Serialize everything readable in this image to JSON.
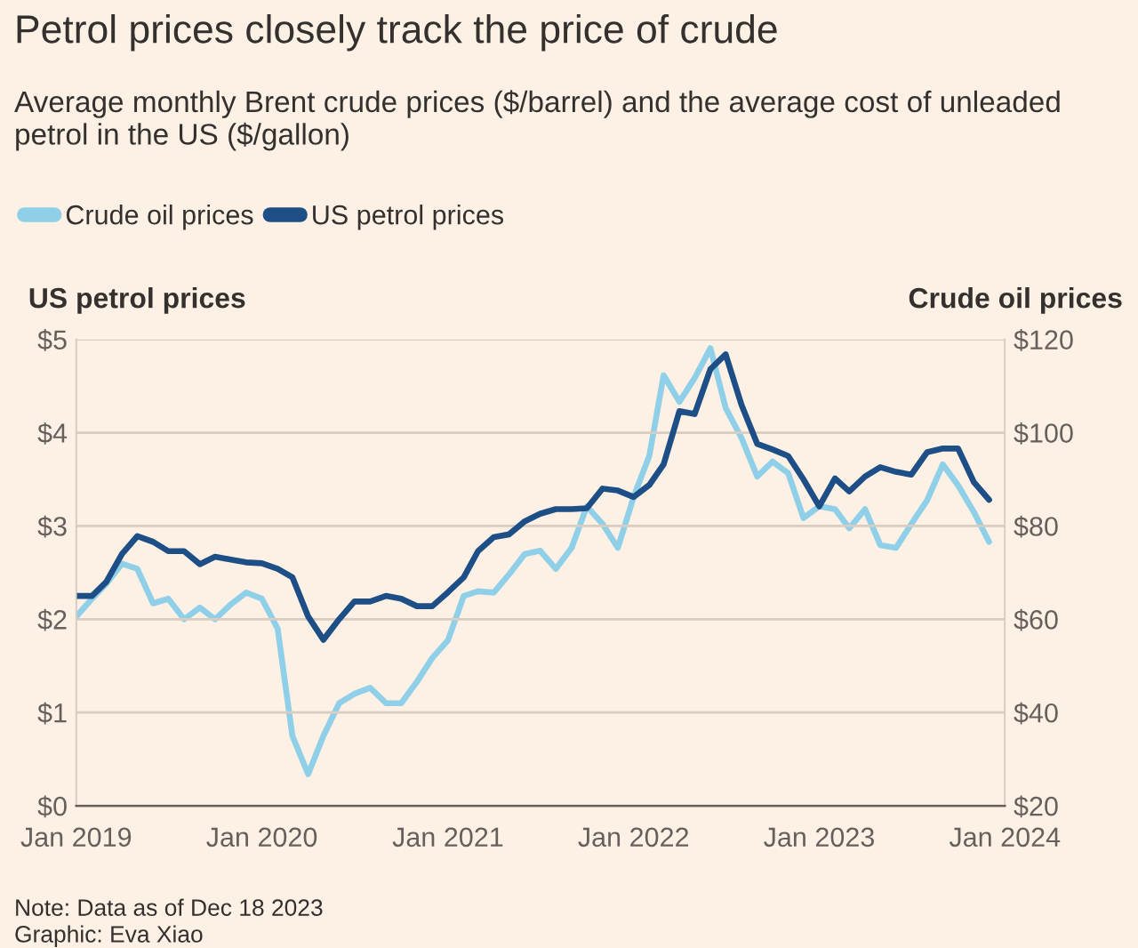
{
  "chart_data": {
    "type": "line",
    "title": "Petrol prices closely track the price of crude",
    "subtitle": "Average monthly Brent crude prices ($/barrel) and the average cost of unleaded petrol in the US ($/gallon)",
    "ylabel": "US petrol prices",
    "y2label": "Crude oil prices",
    "x": [
      "2019-01",
      "2019-02",
      "2019-03",
      "2019-04",
      "2019-05",
      "2019-06",
      "2019-07",
      "2019-08",
      "2019-09",
      "2019-10",
      "2019-11",
      "2019-12",
      "2020-01",
      "2020-02",
      "2020-03",
      "2020-04",
      "2020-05",
      "2020-06",
      "2020-07",
      "2020-08",
      "2020-09",
      "2020-10",
      "2020-11",
      "2020-12",
      "2021-01",
      "2021-02",
      "2021-03",
      "2021-04",
      "2021-05",
      "2021-06",
      "2021-07",
      "2021-08",
      "2021-09",
      "2021-10",
      "2021-11",
      "2021-12",
      "2022-01",
      "2022-02",
      "2022-03",
      "2022-04",
      "2022-05",
      "2022-06",
      "2022-07",
      "2022-08",
      "2022-09",
      "2022-10",
      "2022-11",
      "2022-12",
      "2023-01",
      "2023-02",
      "2023-03",
      "2023-04",
      "2023-05",
      "2023-06",
      "2023-07",
      "2023-08",
      "2023-09",
      "2023-10",
      "2023-11",
      "2023-12"
    ],
    "series": [
      {
        "name": "Crude oil prices",
        "color": "#8fd0e8",
        "axis": "y2",
        "values": [
          60.6,
          64.4,
          67.6,
          71.9,
          70.8,
          63.4,
          64.4,
          60,
          62.5,
          60,
          63.2,
          65.7,
          64.4,
          58,
          35,
          26.8,
          35,
          42,
          44,
          45.3,
          42,
          42,
          46.6,
          51.7,
          55.5,
          65,
          66,
          65.7,
          69.6,
          74,
          74.7,
          70.8,
          75.3,
          84.2,
          80.4,
          75.3,
          86.2,
          95.1,
          112.3,
          106.6,
          111.7,
          118.1,
          105.3,
          98.9,
          90.6,
          93.8,
          91.3,
          81.7,
          84.2,
          83.6,
          79.5,
          83.6,
          75.9,
          75.3,
          80.4,
          85.5,
          93.2,
          88.7,
          83,
          76.6
        ]
      },
      {
        "name": "US petrol prices",
        "color": "#1d4f86",
        "values": [
          2.25,
          2.25,
          2.4,
          2.7,
          2.89,
          2.83,
          2.73,
          2.73,
          2.59,
          2.67,
          2.64,
          2.61,
          2.6,
          2.54,
          2.45,
          2.03,
          1.78,
          2.0,
          2.19,
          2.19,
          2.25,
          2.22,
          2.14,
          2.14,
          2.29,
          2.45,
          2.73,
          2.88,
          2.91,
          3.05,
          3.13,
          3.18,
          3.18,
          3.19,
          3.4,
          3.38,
          3.31,
          3.44,
          3.66,
          4.23,
          4.2,
          4.68,
          4.84,
          4.3,
          3.88,
          3.82,
          3.75,
          3.5,
          3.21,
          3.51,
          3.37,
          3.53,
          3.63,
          3.58,
          3.55,
          3.79,
          3.83,
          3.83,
          3.47,
          3.28
        ]
      }
    ],
    "xlim": [
      "2019-01",
      "2024-01"
    ],
    "xticks": [
      {
        "value": "2019-01",
        "label": "Jan 2019"
      },
      {
        "value": "2020-01",
        "label": "Jan 2020"
      },
      {
        "value": "2021-01",
        "label": "Jan 2021"
      },
      {
        "value": "2022-01",
        "label": "Jan 2022"
      },
      {
        "value": "2023-01",
        "label": "Jan 2023"
      },
      {
        "value": "2024-01",
        "label": "Jan 2024"
      }
    ],
    "ylim": [
      0,
      5
    ],
    "yticks": [
      {
        "value": 0,
        "label": "$0"
      },
      {
        "value": 1,
        "label": "$1"
      },
      {
        "value": 2,
        "label": "$2"
      },
      {
        "value": 3,
        "label": "$3"
      },
      {
        "value": 4,
        "label": "$4"
      },
      {
        "value": 5,
        "label": "$5"
      }
    ],
    "y2lim": [
      20,
      120
    ],
    "y2ticks": [
      {
        "value": 20,
        "label": "$20"
      },
      {
        "value": 40,
        "label": "$40"
      },
      {
        "value": 60,
        "label": "$60"
      },
      {
        "value": 80,
        "label": "$80"
      },
      {
        "value": 100,
        "label": "$100"
      },
      {
        "value": 120,
        "label": "$120"
      }
    ],
    "grid": "y",
    "legend": "top left",
    "line_style": "solid",
    "annotations": [
      "Note: Data as of Dec 18 2023",
      "Graphic: Eva Xiao"
    ]
  }
}
